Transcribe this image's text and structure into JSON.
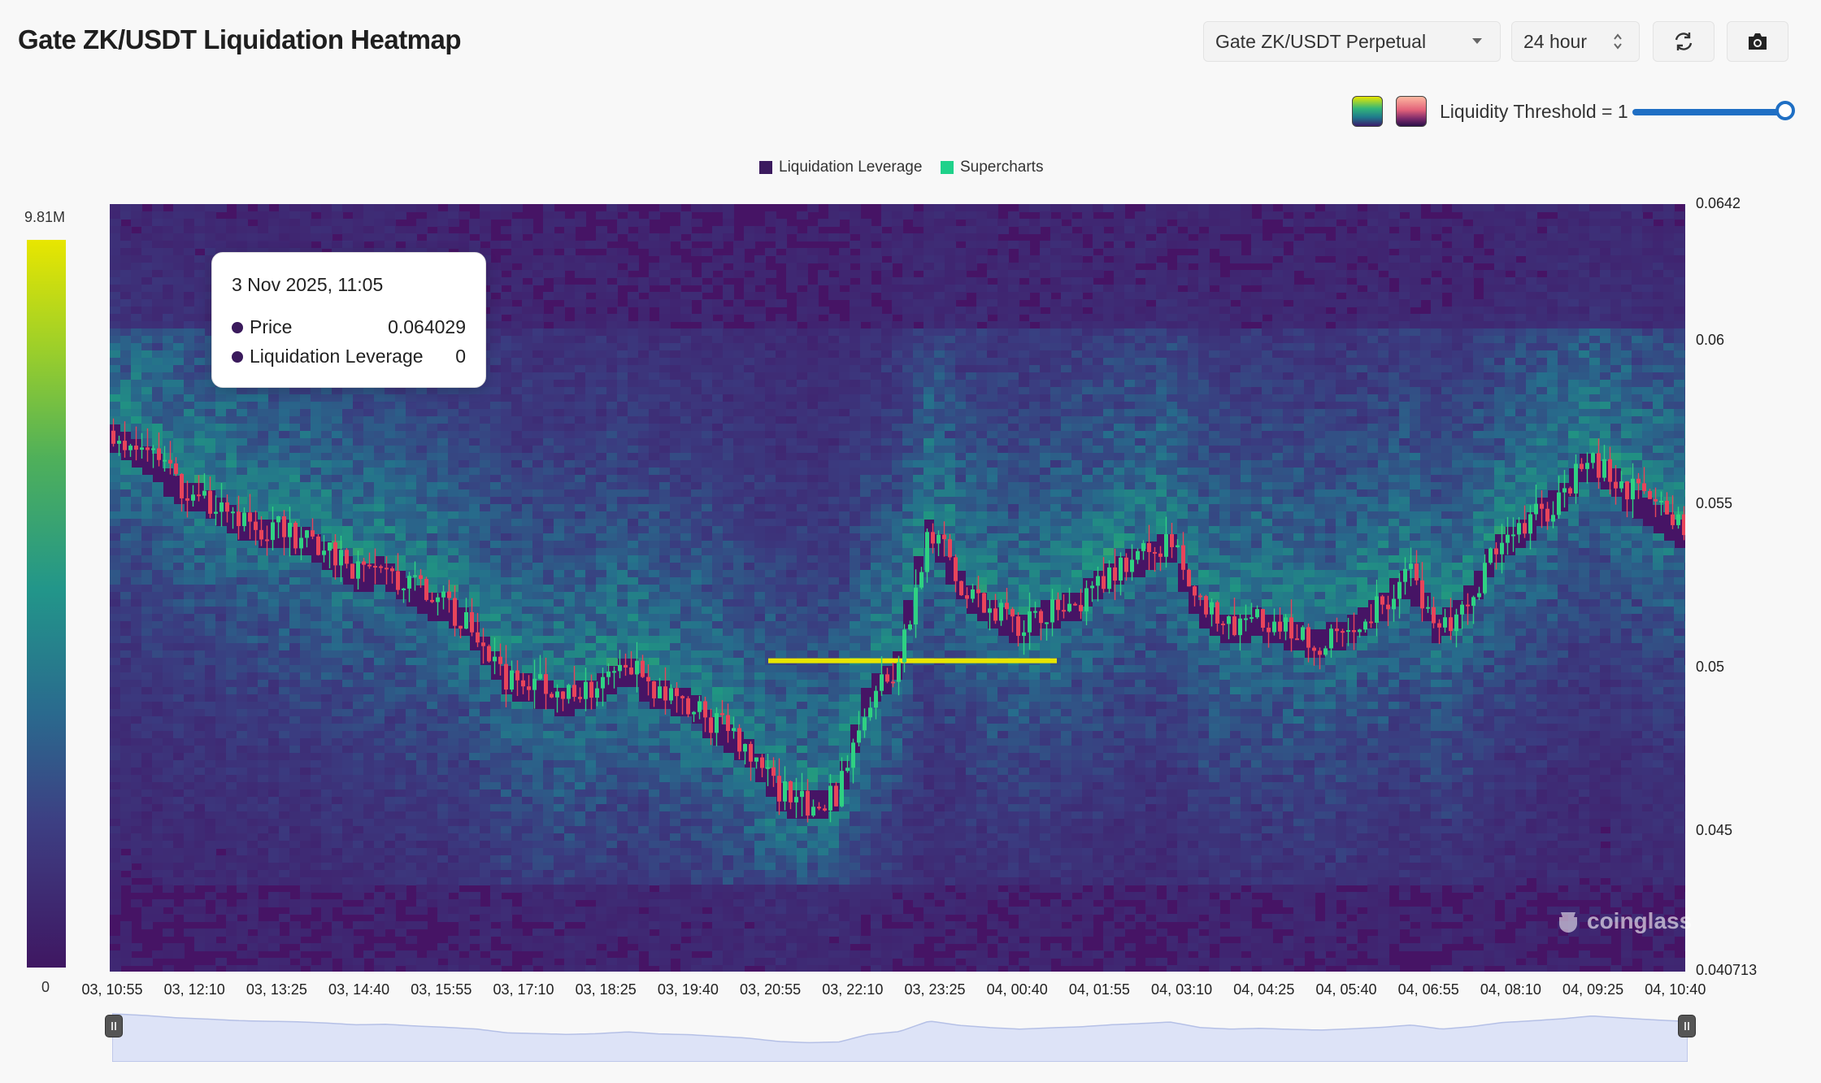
{
  "header": {
    "title": "Gate ZK/USDT Liquidation Heatmap",
    "pair_select": "Gate ZK/USDT Perpetual",
    "range_select": "24 hour"
  },
  "controls": {
    "threshold_label": "Liquidity Threshold = 1",
    "threshold_level": 1.0,
    "palette_a_color": "#33b679",
    "palette_b_color": "#e2627a"
  },
  "legend": {
    "items": [
      {
        "label": "Liquidation Leverage",
        "color": "#3b1a5e"
      },
      {
        "label": "Supercharts",
        "color": "#1fd18a"
      }
    ]
  },
  "colorbar": {
    "max_label": "9.81M",
    "min_label": "0"
  },
  "tooltip": {
    "date": "3 Nov 2025, 11:05",
    "rows": [
      {
        "label": "Price",
        "value": "0.064029"
      },
      {
        "label": "Liquidation Leverage",
        "value": "0"
      }
    ]
  },
  "watermark": "coinglass",
  "chart_data": {
    "type": "heatmap",
    "title": "Gate ZK/USDT Liquidation Heatmap",
    "series": [
      {
        "name": "Liquidation Leverage"
      },
      {
        "name": "Supercharts"
      }
    ],
    "y_axis": {
      "range": [
        0.040713,
        0.0642
      ],
      "tick_labels": [
        "0.0642",
        "0.06",
        "0.055",
        "0.05",
        "0.045",
        "0.040713"
      ],
      "tick_values": [
        0.0642,
        0.06,
        0.055,
        0.05,
        0.045,
        0.040713
      ]
    },
    "x_axis": {
      "tick_labels": [
        "03, 10:55",
        "03, 12:10",
        "03, 13:25",
        "03, 14:40",
        "03, 15:55",
        "03, 17:10",
        "03, 18:25",
        "03, 19:40",
        "03, 20:55",
        "03, 22:10",
        "03, 23:25",
        "04, 00:40",
        "04, 01:55",
        "04, 03:10",
        "04, 04:25",
        "04, 05:40",
        "04, 06:55",
        "04, 08:10",
        "04, 09:25",
        "04, 10:40"
      ]
    },
    "color_scale": {
      "min": 0,
      "max": 9810000,
      "min_label": "0",
      "max_label": "9.81M"
    },
    "price_path": [
      [
        0,
        0.0572
      ],
      [
        0.5,
        0.0566
      ],
      [
        1.0,
        0.0557
      ],
      [
        1.5,
        0.0552
      ],
      [
        2.0,
        0.0546
      ],
      [
        2.5,
        0.0543
      ],
      [
        3.0,
        0.0541
      ],
      [
        3.5,
        0.0536
      ],
      [
        4.0,
        0.0529
      ],
      [
        4.5,
        0.0531
      ],
      [
        5.0,
        0.0524
      ],
      [
        5.5,
        0.0519
      ],
      [
        6.0,
        0.0512
      ],
      [
        6.5,
        0.0497
      ],
      [
        7.0,
        0.0494
      ],
      [
        7.5,
        0.0491
      ],
      [
        8.0,
        0.0494
      ],
      [
        8.5,
        0.0501
      ],
      [
        9.0,
        0.0493
      ],
      [
        9.5,
        0.049
      ],
      [
        10.0,
        0.0483
      ],
      [
        10.5,
        0.0476
      ],
      [
        11.0,
        0.0463
      ],
      [
        11.5,
        0.0458
      ],
      [
        12.0,
        0.0461
      ],
      [
        12.5,
        0.0491
      ],
      [
        13.0,
        0.0502
      ],
      [
        13.5,
        0.0544
      ],
      [
        14.0,
        0.0527
      ],
      [
        14.5,
        0.0518
      ],
      [
        15.0,
        0.0512
      ],
      [
        15.5,
        0.0517
      ],
      [
        16.0,
        0.0521
      ],
      [
        16.5,
        0.0529
      ],
      [
        17.0,
        0.0534
      ],
      [
        17.5,
        0.054
      ],
      [
        18.0,
        0.0518
      ],
      [
        18.5,
        0.0512
      ],
      [
        19.0,
        0.0515
      ],
      [
        19.5,
        0.0511
      ],
      [
        20.0,
        0.0508
      ],
      [
        20.5,
        0.0513
      ],
      [
        21.0,
        0.0519
      ],
      [
        21.5,
        0.0528
      ],
      [
        22.0,
        0.0512
      ],
      [
        22.5,
        0.0522
      ],
      [
        23.0,
        0.0538
      ],
      [
        23.5,
        0.0545
      ],
      [
        24.0,
        0.0553
      ],
      [
        24.5,
        0.0564
      ],
      [
        25.0,
        0.0556
      ],
      [
        25.5,
        0.0549
      ],
      [
        26.0,
        0.0543
      ]
    ],
    "x_label": "",
    "y_label": ""
  }
}
